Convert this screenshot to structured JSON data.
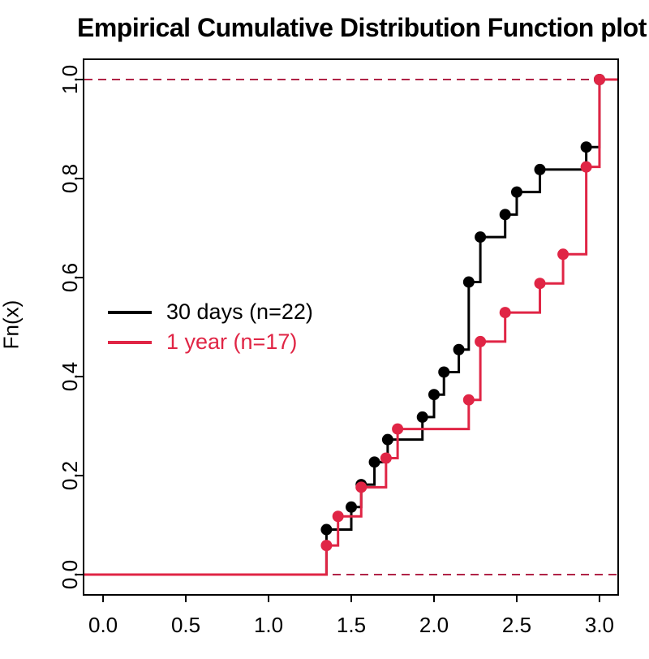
{
  "chart_data": {
    "type": "line",
    "subtype": "step-ecdf",
    "title": "Empirical Cumulative Distribution Function plot",
    "xlabel": "",
    "ylabel": "Fn(x)",
    "xlim": [
      -0.118,
      3.113
    ],
    "ylim": [
      -0.041,
      1.041
    ],
    "xticks": [
      0.0,
      0.5,
      1.0,
      1.5,
      2.0,
      2.5,
      3.0
    ],
    "xtick_labels": [
      "0.0",
      "0.5",
      "1.0",
      "1.5",
      "2.0",
      "2.5",
      "3.0"
    ],
    "yticks": [
      0.0,
      0.2,
      0.4,
      0.6,
      0.8,
      1.0
    ],
    "ytick_labels": [
      "0.0",
      "0.2",
      "0.4",
      "0.6",
      "0.8",
      "1.0"
    ],
    "grid": false,
    "hlines": {
      "values": [
        0,
        1
      ],
      "style": "dashed",
      "color": "#b02347"
    },
    "legend_position": "left-middle",
    "series": [
      {
        "name": "30 days (n=22)",
        "color": "#000000",
        "n": 22,
        "knots": [
          [
            1.35,
            0.0909
          ],
          [
            1.5,
            0.1364
          ],
          [
            1.56,
            0.1818
          ],
          [
            1.64,
            0.2273
          ],
          [
            1.72,
            0.2727
          ],
          [
            1.93,
            0.3182
          ],
          [
            2.0,
            0.3636
          ],
          [
            2.06,
            0.4091
          ],
          [
            2.15,
            0.4545
          ],
          [
            2.21,
            0.5909
          ],
          [
            2.28,
            0.6818
          ],
          [
            2.43,
            0.7273
          ],
          [
            2.5,
            0.7727
          ],
          [
            2.64,
            0.8182
          ],
          [
            2.92,
            0.8636
          ],
          [
            3.0,
            1.0
          ]
        ]
      },
      {
        "name": "1 year (n=17)",
        "color": "#e02545",
        "n": 17,
        "knots": [
          [
            1.35,
            0.0588
          ],
          [
            1.42,
            0.1176
          ],
          [
            1.56,
            0.1765
          ],
          [
            1.71,
            0.2353
          ],
          [
            1.78,
            0.2941
          ],
          [
            2.21,
            0.3529
          ],
          [
            2.28,
            0.4706
          ],
          [
            2.43,
            0.5294
          ],
          [
            2.64,
            0.5882
          ],
          [
            2.78,
            0.6471
          ],
          [
            2.92,
            0.8235
          ],
          [
            3.0,
            1.0
          ]
        ]
      }
    ]
  }
}
